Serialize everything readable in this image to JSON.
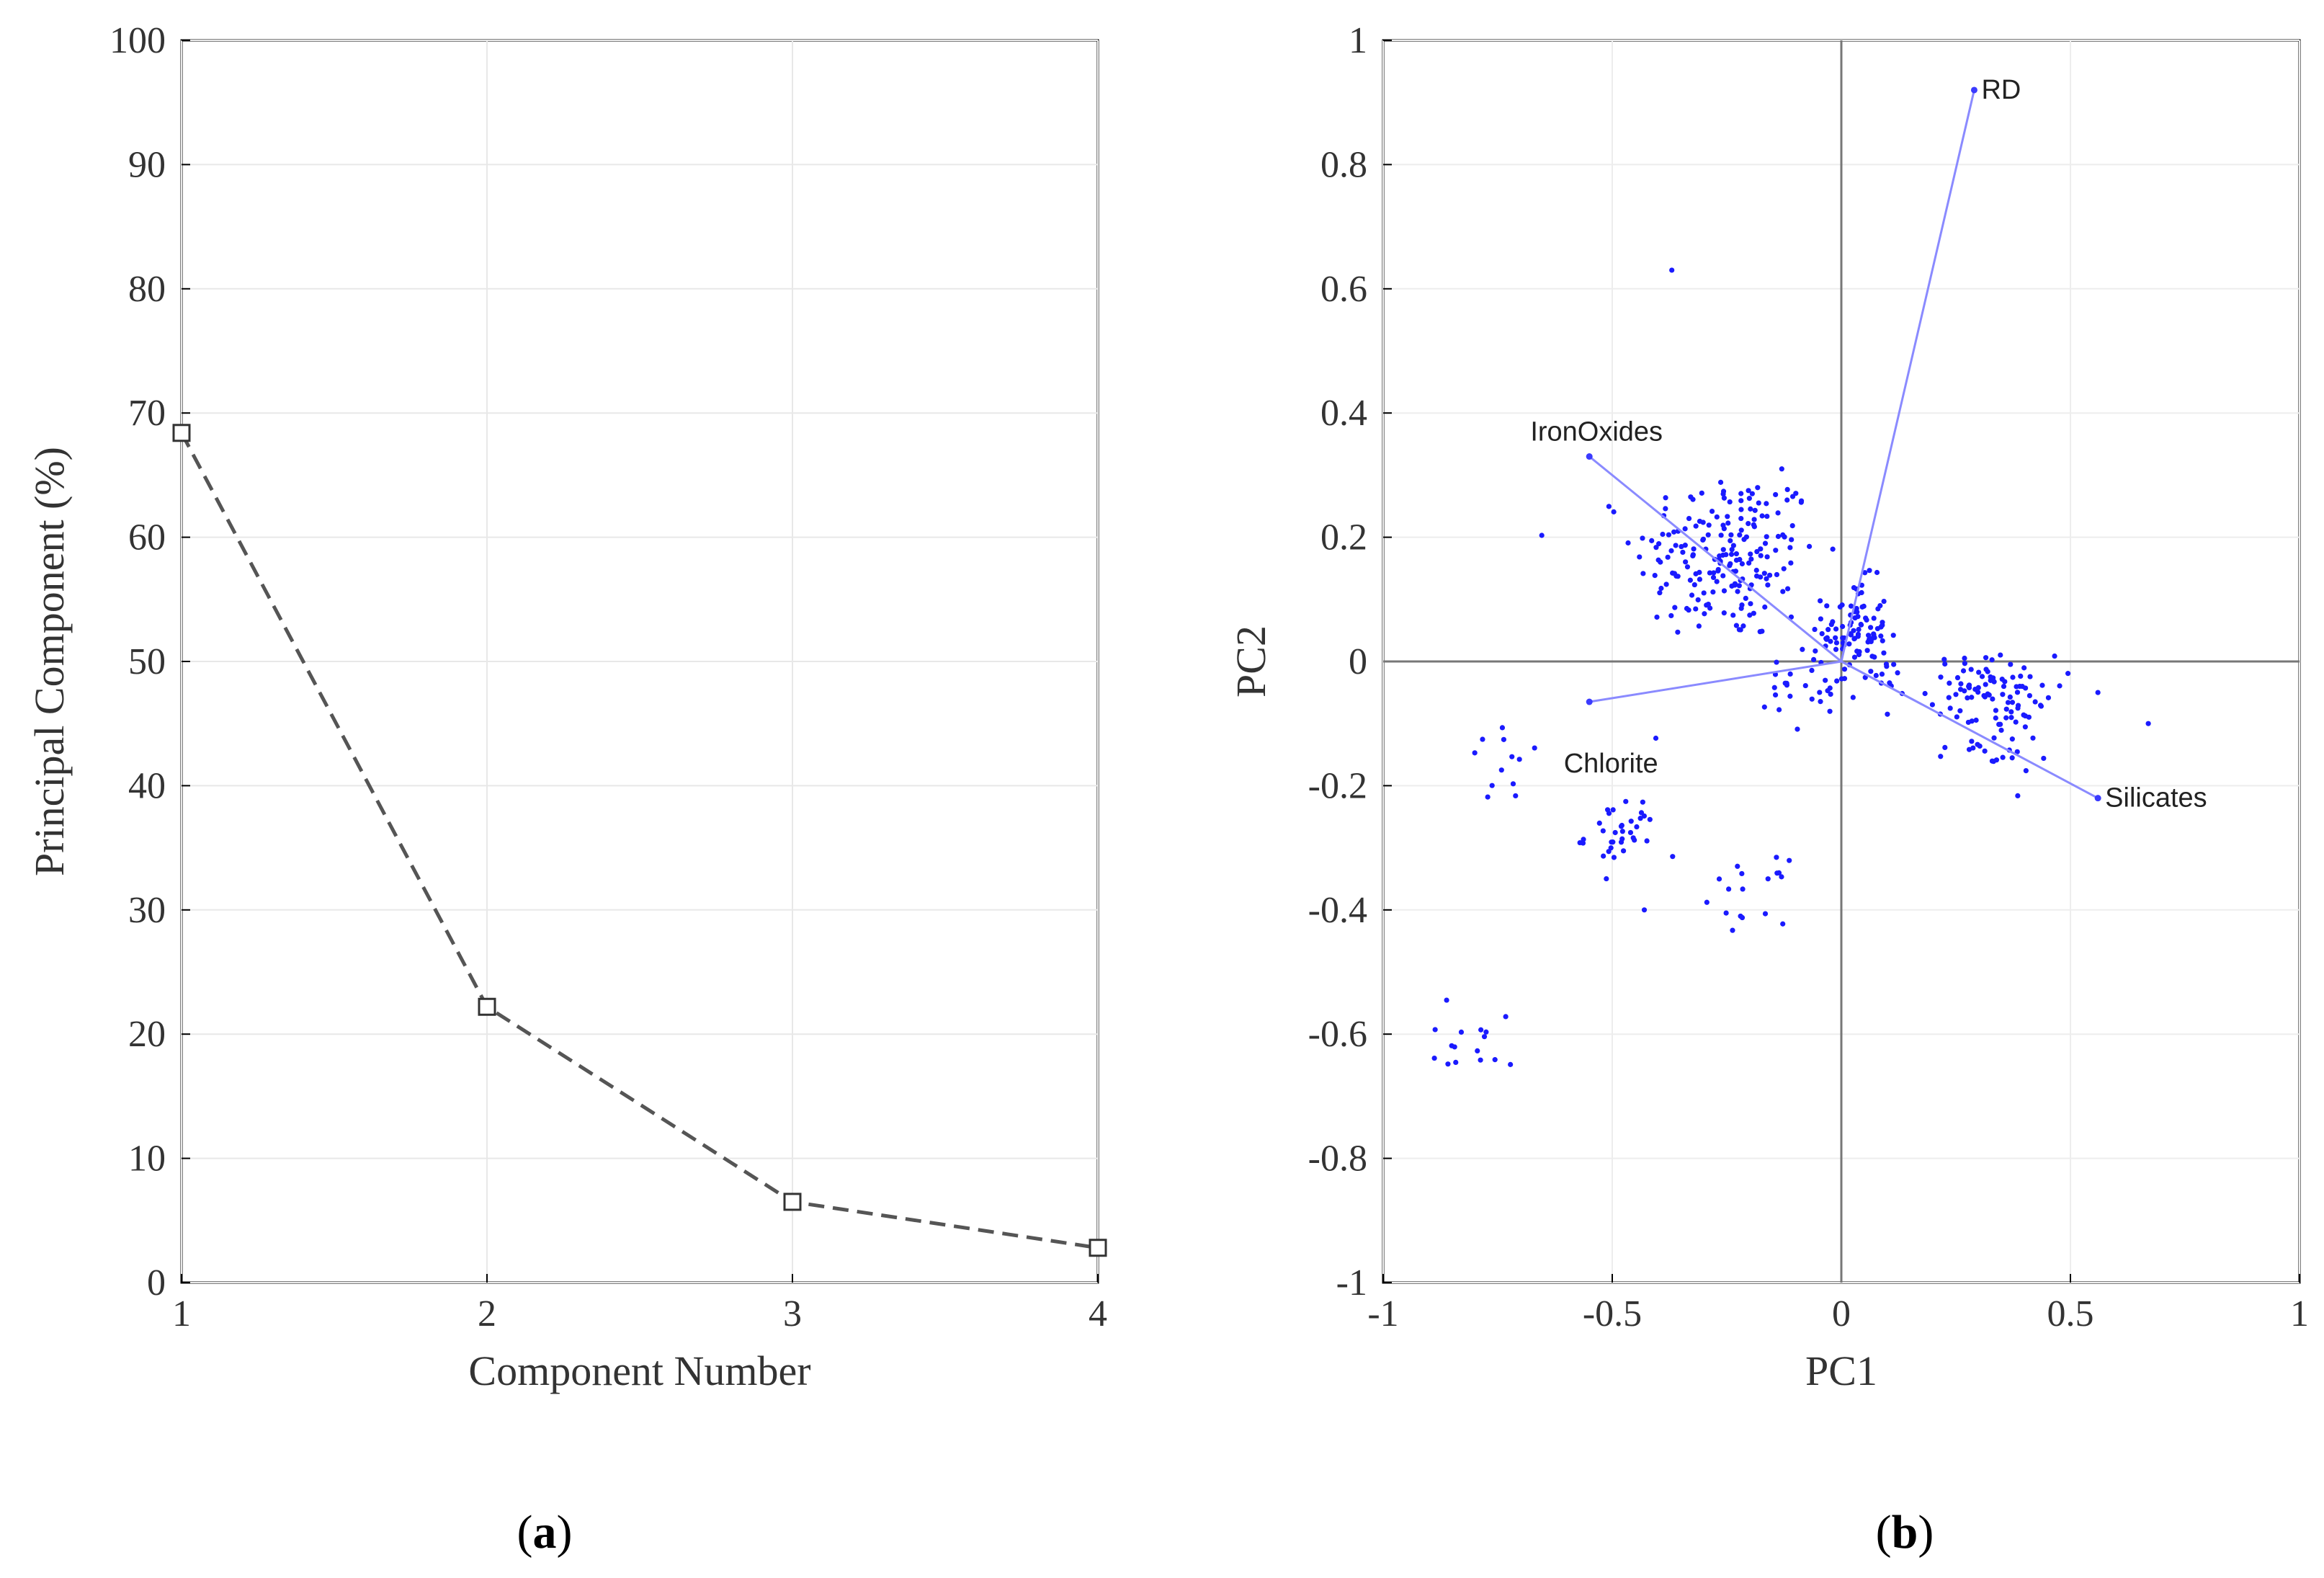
{
  "chart_data": [
    {
      "type": "line",
      "panel_label": "(a)",
      "panel_letter": "a",
      "title": "",
      "xlabel": "Component Number",
      "ylabel": "Principal Component (%)",
      "x": [
        1,
        2,
        3,
        4
      ],
      "values": [
        68.4,
        22.2,
        6.5,
        2.8
      ],
      "xlim": [
        1,
        4
      ],
      "ylim": [
        0,
        100
      ],
      "xticks": [
        "1",
        "2",
        "3",
        "4"
      ],
      "yticks": [
        "0",
        "10",
        "20",
        "30",
        "40",
        "50",
        "60",
        "70",
        "80",
        "90",
        "100"
      ],
      "grid": true,
      "line_style": "dashed",
      "marker": "square",
      "color": "#555555"
    },
    {
      "type": "scatter",
      "subtype": "biplot",
      "panel_label": "(b)",
      "panel_letter": "b",
      "title": "",
      "xlabel": "PC1",
      "ylabel": "PC2",
      "xlim": [
        -1,
        1
      ],
      "ylim": [
        -1,
        1
      ],
      "xticks": [
        "-1",
        "-0.5",
        "0",
        "0.5",
        "1"
      ],
      "yticks": [
        "-1",
        "-0.8",
        "-0.6",
        "-0.4",
        "-0.2",
        "0",
        "0.2",
        "0.4",
        "0.6",
        "0.8",
        "1"
      ],
      "grid": true,
      "color": "#1a1aff",
      "vector_color": "#8a8aff",
      "vectors": [
        {
          "name": "RD",
          "x": 0.29,
          "y": 0.92
        },
        {
          "name": "IronOxides",
          "x": -0.55,
          "y": 0.33
        },
        {
          "name": "Chlorite",
          "x": -0.55,
          "y": -0.065
        },
        {
          "name": "Silicates",
          "x": 0.56,
          "y": -0.22
        }
      ],
      "clusters": [
        {
          "cx": -0.25,
          "cy": 0.17,
          "sx": 0.1,
          "sy": 0.07,
          "n": 200
        },
        {
          "cx": 0.03,
          "cy": 0.05,
          "sx": 0.035,
          "sy": 0.04,
          "n": 90
        },
        {
          "cx": 0.33,
          "cy": -0.04,
          "sx": 0.07,
          "sy": 0.025,
          "n": 75
        },
        {
          "cx": 0.33,
          "cy": -0.13,
          "sx": 0.06,
          "sy": 0.03,
          "n": 35
        },
        {
          "cx": -0.48,
          "cy": -0.28,
          "sx": 0.04,
          "sy": 0.03,
          "n": 35
        },
        {
          "cx": -0.2,
          "cy": -0.37,
          "sx": 0.04,
          "sy": 0.025,
          "n": 16
        },
        {
          "cx": -0.72,
          "cy": -0.17,
          "sx": 0.05,
          "sy": 0.03,
          "n": 12
        },
        {
          "cx": -0.8,
          "cy": -0.61,
          "sx": 0.09,
          "sy": 0.035,
          "n": 16
        },
        {
          "cx": -0.08,
          "cy": -0.05,
          "sx": 0.06,
          "sy": 0.035,
          "n": 25
        },
        {
          "cx": 0.1,
          "cy": -0.03,
          "sx": 0.08,
          "sy": 0.02,
          "n": 15
        }
      ],
      "extra_points": [
        {
          "x": -0.37,
          "y": 0.63
        },
        {
          "x": -0.13,
          "y": 0.31
        },
        {
          "x": 0.56,
          "y": -0.05
        },
        {
          "x": 0.67,
          "y": -0.1
        },
        {
          "x": -0.43,
          "y": -0.4
        },
        {
          "x": -0.22,
          "y": -0.41
        },
        {
          "x": -0.16,
          "y": -0.35
        }
      ]
    }
  ]
}
